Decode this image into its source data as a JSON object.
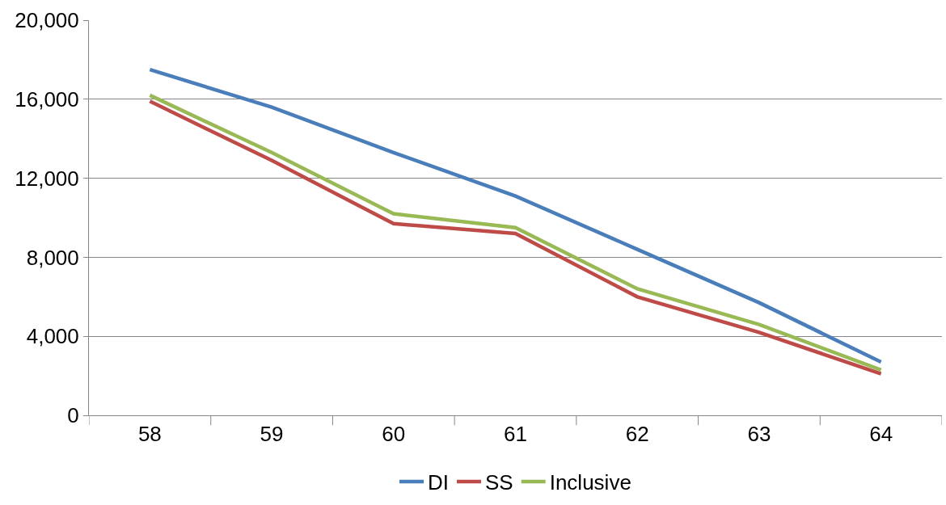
{
  "chart_data": {
    "type": "line",
    "categories": [
      "58",
      "59",
      "60",
      "61",
      "62",
      "63",
      "64"
    ],
    "series": [
      {
        "name": "DI",
        "color": "#4a7ebb",
        "values": [
          17500,
          15600,
          13300,
          11100,
          8400,
          5700,
          2700
        ]
      },
      {
        "name": "SS",
        "color": "#be4b48",
        "values": [
          15900,
          12900,
          9700,
          9200,
          6000,
          4200,
          2100
        ]
      },
      {
        "name": "Inclusive",
        "color": "#98b954",
        "values": [
          16200,
          13300,
          10200,
          9500,
          6400,
          4600,
          2300
        ]
      }
    ],
    "ylim": [
      0,
      20000
    ],
    "yticks": [
      {
        "value": 0,
        "label": "0"
      },
      {
        "value": 4000,
        "label": "4,000"
      },
      {
        "value": 8000,
        "label": "8,000"
      },
      {
        "value": 12000,
        "label": "12,000"
      },
      {
        "value": 16000,
        "label": "16,000"
      },
      {
        "value": 20000,
        "label": "20,000"
      }
    ],
    "grid": "y",
    "legend": "bottom",
    "marker": "none",
    "line_style": "solid"
  }
}
